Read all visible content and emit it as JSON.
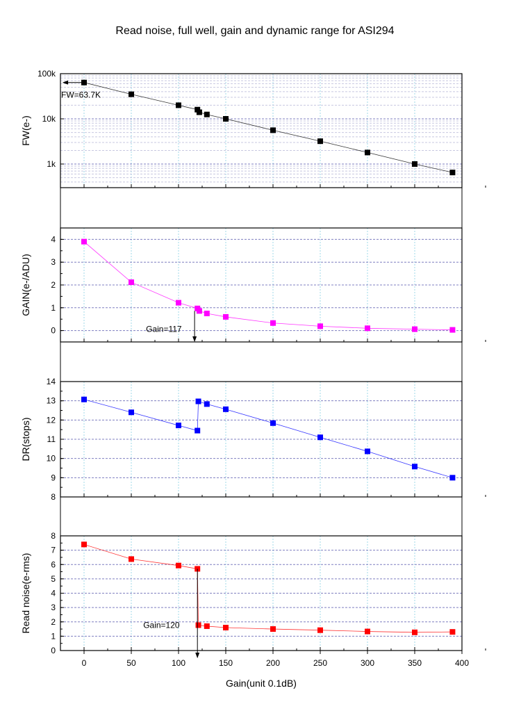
{
  "chart_data": {
    "type": "scatter",
    "title": "Read noise, full well, gain and dynamic range for ASI294",
    "xlabel": "Gain(unit 0.1dB)",
    "xlim": [
      -25,
      400
    ],
    "xticks": [
      "0",
      "50",
      "100",
      "150",
      "200",
      "250",
      "300",
      "350",
      "400"
    ],
    "grid": true,
    "panels": [
      {
        "id": "fw",
        "ylabel": "FW(e-)",
        "yscale": "log",
        "ylim": [
          300,
          100000
        ],
        "yticks": [
          {
            "value": 1000,
            "label": "1k"
          },
          {
            "value": 10000,
            "label": "10k"
          },
          {
            "value": 100000,
            "label": "100k"
          }
        ],
        "color": "#000000",
        "series": [
          {
            "x": [
              0,
              50,
              100,
              120,
              122,
              130,
              150,
              200,
              250,
              300,
              350,
              390
            ],
            "y": [
              63700,
              35000,
              20000,
              16000,
              14000,
              12500,
              10000,
              5600,
              3200,
              1800,
              1000,
              650
            ]
          }
        ],
        "annotation": {
          "text": "FW=63.7K",
          "x": 0,
          "y": 63700
        }
      },
      {
        "id": "gain",
        "ylabel": "GAIN(e-/ADU)",
        "yscale": "linear",
        "ylim": [
          -0.5,
          4.5
        ],
        "yticks": [
          {
            "value": 0,
            "label": "0"
          },
          {
            "value": 1,
            "label": "1"
          },
          {
            "value": 2,
            "label": "2"
          },
          {
            "value": 3,
            "label": "3"
          },
          {
            "value": 4,
            "label": "4"
          }
        ],
        "color": "#ff00ff",
        "series": [
          {
            "x": [
              0,
              50,
              100,
              120,
              122,
              130,
              150,
              200,
              250,
              300,
              350,
              390
            ],
            "y": [
              3.9,
              2.12,
              1.22,
              0.97,
              0.86,
              0.75,
              0.6,
              0.33,
              0.19,
              0.1,
              0.06,
              0.03
            ]
          }
        ],
        "annotation": {
          "text": "Gain=117",
          "x": 117,
          "y": 0.86
        }
      },
      {
        "id": "dr",
        "ylabel": "DR(stops)",
        "yscale": "linear",
        "ylim": [
          8,
          14
        ],
        "yticks": [
          {
            "value": 8,
            "label": "8"
          },
          {
            "value": 9,
            "label": "9"
          },
          {
            "value": 10,
            "label": "10"
          },
          {
            "value": 11,
            "label": "11"
          },
          {
            "value": 12,
            "label": "12"
          },
          {
            "value": 13,
            "label": "13"
          },
          {
            "value": 14,
            "label": "14"
          }
        ],
        "color": "#0000ff",
        "series": [
          {
            "x": [
              0,
              50,
              100,
              120,
              121,
              130,
              150,
              200,
              250,
              300,
              350,
              390
            ],
            "y": [
              13.07,
              12.4,
              11.72,
              11.45,
              12.97,
              12.83,
              12.56,
              11.84,
              11.1,
              10.37,
              9.58,
              9.0
            ]
          }
        ]
      },
      {
        "id": "rn",
        "ylabel": "Read noise(e-rms)",
        "yscale": "linear",
        "ylim": [
          0,
          8
        ],
        "yticks": [
          {
            "value": 0,
            "label": "0"
          },
          {
            "value": 1,
            "label": "1"
          },
          {
            "value": 2,
            "label": "2"
          },
          {
            "value": 3,
            "label": "3"
          },
          {
            "value": 4,
            "label": "4"
          },
          {
            "value": 5,
            "label": "5"
          },
          {
            "value": 6,
            "label": "6"
          },
          {
            "value": 7,
            "label": "7"
          },
          {
            "value": 8,
            "label": "8"
          }
        ],
        "color": "#ff0000",
        "series": [
          {
            "x": [
              0,
              50,
              100,
              120,
              121,
              130,
              150,
              200,
              250,
              300,
              350,
              390
            ],
            "y": [
              7.4,
              6.38,
              5.93,
              5.7,
              1.77,
              1.7,
              1.6,
              1.5,
              1.42,
              1.33,
              1.27,
              1.3
            ]
          }
        ],
        "annotation": {
          "text": "Gain=120",
          "x": 120,
          "y": 1.77
        }
      }
    ]
  }
}
